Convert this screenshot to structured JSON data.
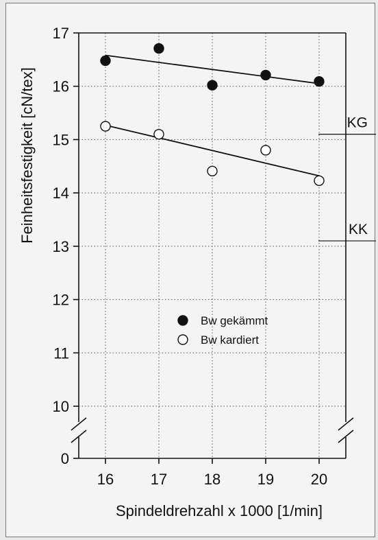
{
  "chart_data": {
    "type": "scatter",
    "xlabel": "Spindeldrehzahl x 1000 [1/min]",
    "ylabel": "Feinheitsfestigkeit [cN/tex]",
    "x": [
      16,
      17,
      18,
      19,
      20
    ],
    "x_ticks": [
      "16",
      "17",
      "18",
      "19",
      "20"
    ],
    "y_ticks": [
      "17",
      "16",
      "15",
      "14",
      "13",
      "12",
      "11",
      "10"
    ],
    "y_zero_label": "0",
    "xlim": [
      15.5,
      20.5
    ],
    "ylim": [
      9.5,
      17
    ],
    "y_axis_break": true,
    "grid": true,
    "legend_placement": "center",
    "series": [
      {
        "name": "Bw gekämmt",
        "marker": "filled-circle",
        "values": [
          16.48,
          16.71,
          16.02,
          16.21,
          16.09
        ],
        "trend": [
          16.58,
          16.05
        ]
      },
      {
        "name": "Bw kardiert",
        "marker": "open-circle",
        "values": [
          15.25,
          15.1,
          14.41,
          14.8,
          14.23
        ],
        "trend": [
          15.27,
          14.32
        ]
      }
    ],
    "reference_lines": [
      {
        "label": "KG",
        "value": 15.1
      },
      {
        "label": "KK",
        "value": 13.1
      }
    ]
  }
}
